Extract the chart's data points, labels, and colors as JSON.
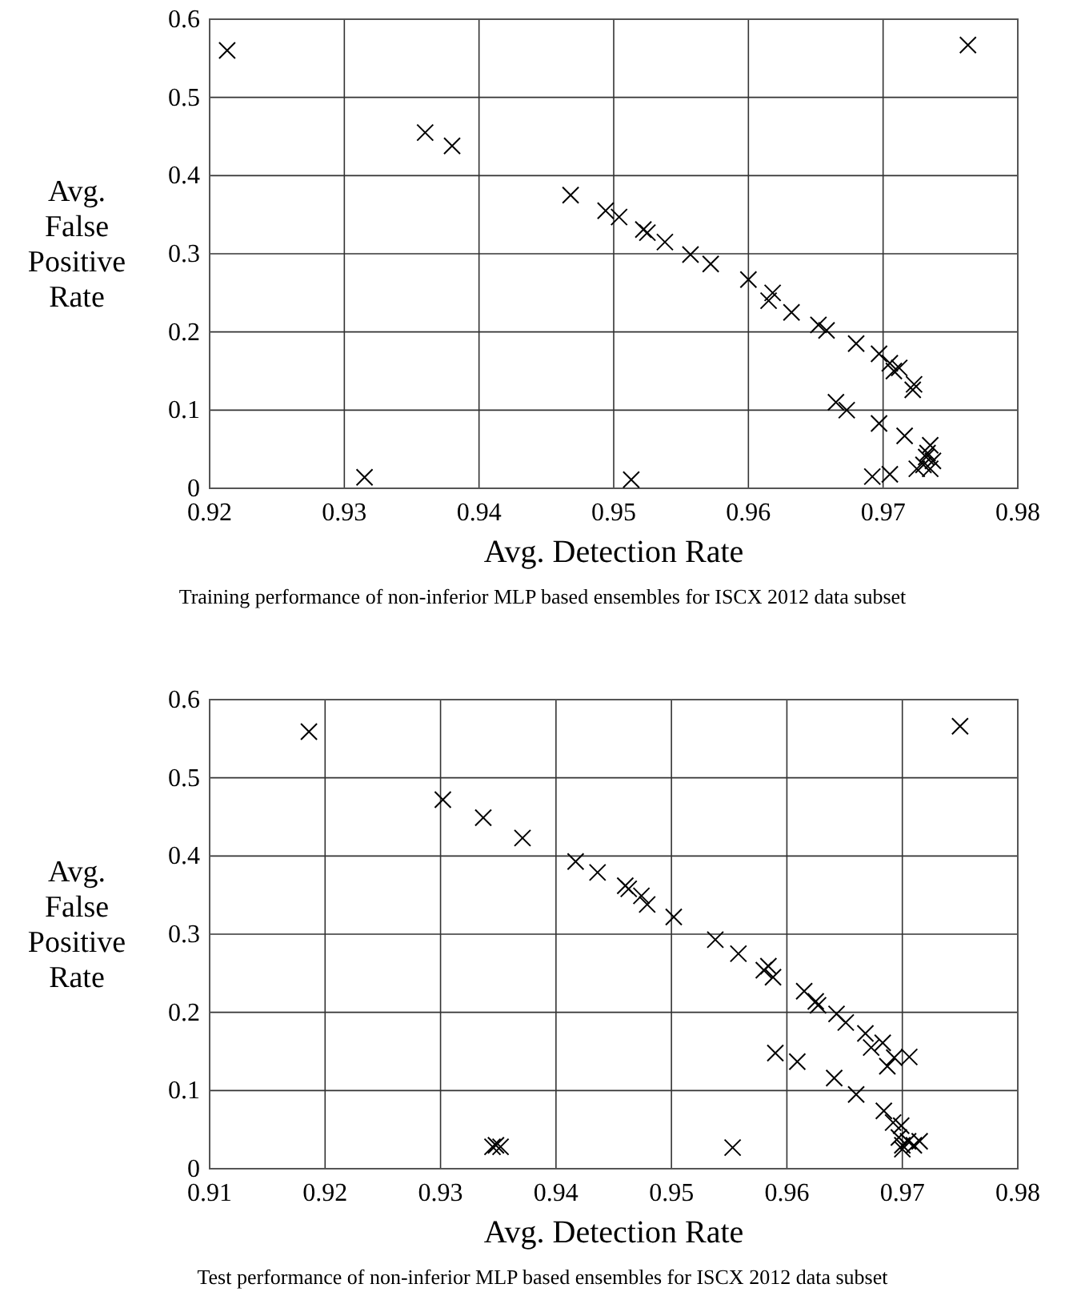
{
  "chart_data": [
    {
      "type": "scatter",
      "xlabel": "Avg. Detection Rate",
      "ylabel": "Avg. False Positive Rate",
      "annotations": [
        "Training performance of non-inferior MLP based ensembles for ISCX 2012 data subset"
      ],
      "xlim": [
        0.92,
        0.98
      ],
      "xticks": [
        0.92,
        0.93,
        0.94,
        0.95,
        0.96,
        0.97,
        0.98
      ],
      "ylim": [
        0,
        0.6
      ],
      "yticks": [
        0,
        0.1,
        0.2,
        0.3,
        0.4,
        0.5,
        0.6
      ],
      "grid": true,
      "marker": "cross",
      "series": [
        {
          "color": "#000000",
          "x": [
            0.9213,
            0.9763,
            0.936,
            0.938,
            0.9315,
            0.9513,
            0.9468,
            0.9494,
            0.9504,
            0.9522,
            0.9525,
            0.9538,
            0.9557,
            0.9572,
            0.96,
            0.9615,
            0.9618,
            0.9632,
            0.9652,
            0.9658,
            0.968,
            0.9697,
            0.9705,
            0.9708,
            0.9712,
            0.9722,
            0.9723,
            0.9665,
            0.9673,
            0.9697,
            0.9716,
            0.9692,
            0.9705,
            0.9725,
            0.973,
            0.9733,
            0.9735,
            0.9737,
            0.9735,
            0.9732
          ],
          "values": [
            0.56,
            0.567,
            0.455,
            0.438,
            0.014,
            0.011,
            0.375,
            0.355,
            0.347,
            0.331,
            0.327,
            0.315,
            0.299,
            0.287,
            0.267,
            0.24,
            0.25,
            0.225,
            0.209,
            0.202,
            0.185,
            0.172,
            0.16,
            0.15,
            0.154,
            0.126,
            0.133,
            0.11,
            0.1,
            0.083,
            0.067,
            0.015,
            0.018,
            0.025,
            0.03,
            0.045,
            0.055,
            0.035,
            0.025,
            0.04
          ]
        }
      ]
    },
    {
      "type": "scatter",
      "xlabel": "Avg. Detection Rate",
      "ylabel": "Avg. False Positive Rate",
      "annotations": [
        "Test performance of non-inferior MLP based ensembles for ISCX 2012 data subset"
      ],
      "xlim": [
        0.91,
        0.98
      ],
      "xticks": [
        0.91,
        0.92,
        0.93,
        0.94,
        0.95,
        0.96,
        0.97,
        0.98
      ],
      "ylim": [
        0,
        0.6
      ],
      "yticks": [
        0,
        0.1,
        0.2,
        0.3,
        0.4,
        0.5,
        0.6
      ],
      "grid": true,
      "marker": "cross",
      "series": [
        {
          "color": "#000000",
          "x": [
            0.9186,
            0.975,
            0.9302,
            0.9337,
            0.9371,
            0.9417,
            0.9436,
            0.946,
            0.9463,
            0.9474,
            0.9479,
            0.9502,
            0.9538,
            0.9558,
            0.958,
            0.9584,
            0.9588,
            0.959,
            0.9609,
            0.9615,
            0.9625,
            0.9627,
            0.9643,
            0.9651,
            0.9641,
            0.966,
            0.9668,
            0.9673,
            0.9683,
            0.9687,
            0.9693,
            0.9706,
            0.9684,
            0.9692,
            0.9699,
            0.9697,
            0.97,
            0.9705,
            0.971,
            0.9715,
            0.97,
            0.9345,
            0.9348,
            0.9352,
            0.9553
          ],
          "values": [
            0.559,
            0.566,
            0.472,
            0.449,
            0.423,
            0.393,
            0.379,
            0.362,
            0.358,
            0.349,
            0.338,
            0.322,
            0.293,
            0.275,
            0.254,
            0.259,
            0.245,
            0.148,
            0.137,
            0.227,
            0.214,
            0.209,
            0.198,
            0.187,
            0.116,
            0.095,
            0.173,
            0.155,
            0.161,
            0.131,
            0.142,
            0.143,
            0.074,
            0.059,
            0.055,
            0.04,
            0.03,
            0.035,
            0.03,
            0.035,
            0.025,
            0.028,
            0.03,
            0.028,
            0.027
          ]
        }
      ]
    }
  ]
}
